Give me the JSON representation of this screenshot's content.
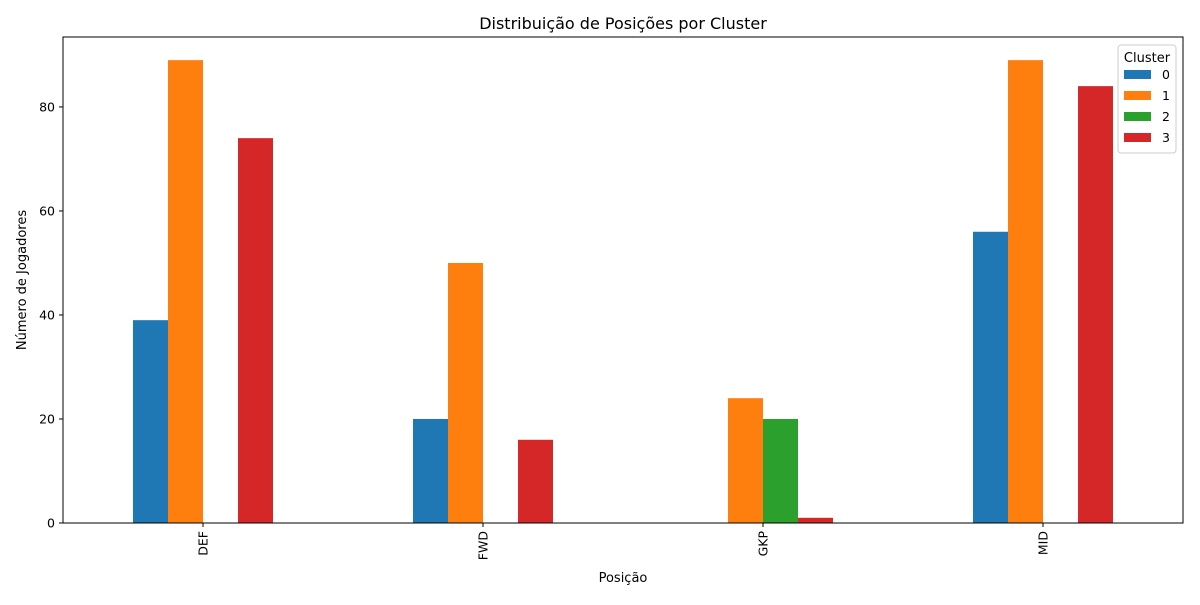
{
  "chart_data": {
    "type": "bar",
    "title": "Distribuição de Posições por Cluster",
    "xlabel": "Posição",
    "ylabel": "Número de Jogadores",
    "categories": [
      "DEF",
      "FWD",
      "GKP",
      "MID"
    ],
    "series": [
      {
        "name": "0",
        "color": "#1f77b4",
        "values": [
          39,
          20,
          0,
          56
        ]
      },
      {
        "name": "1",
        "color": "#ff7f0e",
        "values": [
          89,
          50,
          24,
          89
        ]
      },
      {
        "name": "2",
        "color": "#2ca02c",
        "values": [
          0,
          0,
          20,
          0
        ]
      },
      {
        "name": "3",
        "color": "#d62728",
        "values": [
          74,
          16,
          1,
          84
        ]
      }
    ],
    "ylim": [
      0,
      93.45
    ],
    "yticks": [
      0,
      20,
      40,
      60,
      80
    ],
    "legend": {
      "title": "Cluster",
      "placement": "top-right"
    },
    "grid": false
  }
}
